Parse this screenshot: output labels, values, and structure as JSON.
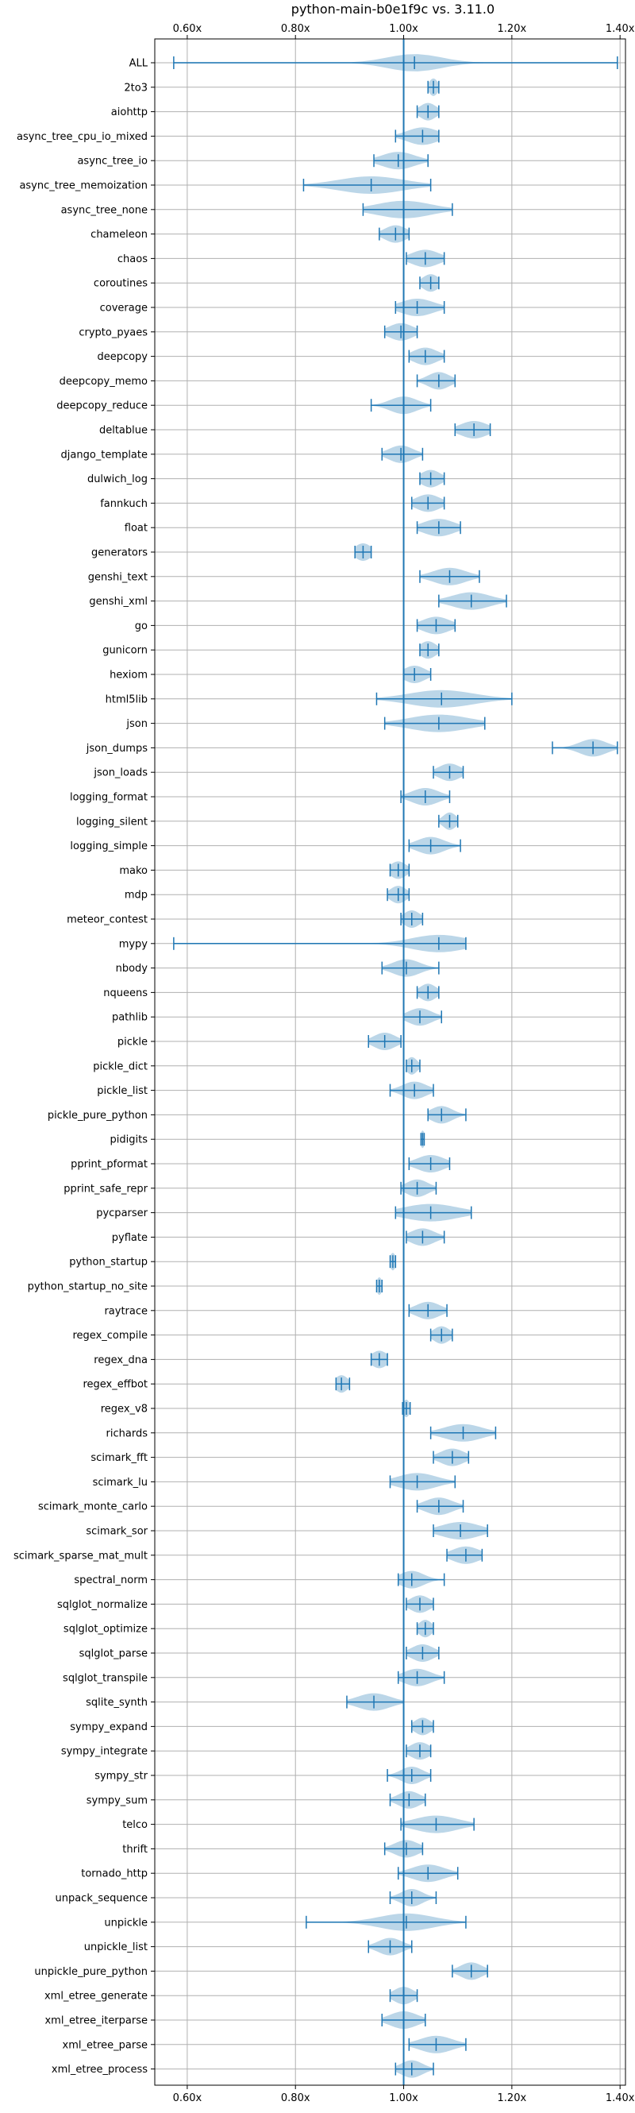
{
  "chart_data": {
    "type": "violin",
    "title": "python-main-b0e1f9c vs. 3.11.0",
    "xlim": [
      0.54,
      1.41
    ],
    "x_ticks": [
      0.6,
      0.8,
      1.0,
      1.2,
      1.4
    ],
    "x_tick_labels": [
      "0.60x",
      "0.80x",
      "1.00x",
      "1.20x",
      "1.40x"
    ],
    "reference_line": 1.0,
    "ticks_top_and_bottom": true,
    "grid": true,
    "colors": {
      "violin": "#1f77b4",
      "reference": "#1f77b4",
      "grid": "#b0b0b0"
    },
    "benchmarks": [
      {
        "name": "ALL",
        "min": 0.575,
        "max": 1.395,
        "median": 1.02,
        "spread": 0.05
      },
      {
        "name": "2to3",
        "min": 1.045,
        "max": 1.065,
        "median": 1.055,
        "spread": 0.008
      },
      {
        "name": "aiohttp",
        "min": 1.025,
        "max": 1.065,
        "median": 1.045,
        "spread": 0.015
      },
      {
        "name": "async_tree_cpu_io_mixed",
        "min": 0.985,
        "max": 1.065,
        "median": 1.035,
        "spread": 0.028
      },
      {
        "name": "async_tree_io",
        "min": 0.945,
        "max": 1.045,
        "median": 0.99,
        "spread": 0.03
      },
      {
        "name": "async_tree_memoization",
        "min": 0.815,
        "max": 1.05,
        "median": 0.94,
        "spread": 0.06
      },
      {
        "name": "async_tree_none",
        "min": 0.925,
        "max": 1.09,
        "median": 1.0,
        "spread": 0.05
      },
      {
        "name": "chameleon",
        "min": 0.955,
        "max": 1.01,
        "median": 0.985,
        "spread": 0.02
      },
      {
        "name": "chaos",
        "min": 1.005,
        "max": 1.075,
        "median": 1.04,
        "spread": 0.025
      },
      {
        "name": "coroutines",
        "min": 1.03,
        "max": 1.065,
        "median": 1.05,
        "spread": 0.015
      },
      {
        "name": "coverage",
        "min": 0.985,
        "max": 1.075,
        "median": 1.025,
        "spread": 0.03
      },
      {
        "name": "crypto_pyaes",
        "min": 0.965,
        "max": 1.025,
        "median": 0.995,
        "spread": 0.022
      },
      {
        "name": "deepcopy",
        "min": 1.01,
        "max": 1.075,
        "median": 1.04,
        "spread": 0.022
      },
      {
        "name": "deepcopy_memo",
        "min": 1.025,
        "max": 1.095,
        "median": 1.065,
        "spread": 0.02
      },
      {
        "name": "deepcopy_reduce",
        "min": 0.94,
        "max": 1.05,
        "median": 1.0,
        "spread": 0.025
      },
      {
        "name": "deltablue",
        "min": 1.095,
        "max": 1.16,
        "median": 1.13,
        "spread": 0.025
      },
      {
        "name": "django_template",
        "min": 0.96,
        "max": 1.035,
        "median": 0.995,
        "spread": 0.022
      },
      {
        "name": "dulwich_log",
        "min": 1.03,
        "max": 1.075,
        "median": 1.05,
        "spread": 0.018
      },
      {
        "name": "fannkuch",
        "min": 1.015,
        "max": 1.075,
        "median": 1.045,
        "spread": 0.022
      },
      {
        "name": "float",
        "min": 1.025,
        "max": 1.105,
        "median": 1.065,
        "spread": 0.028
      },
      {
        "name": "generators",
        "min": 0.91,
        "max": 0.94,
        "median": 0.925,
        "spread": 0.015
      },
      {
        "name": "genshi_text",
        "min": 1.03,
        "max": 1.14,
        "median": 1.085,
        "spread": 0.03
      },
      {
        "name": "genshi_xml",
        "min": 1.065,
        "max": 1.19,
        "median": 1.125,
        "spread": 0.035
      },
      {
        "name": "go",
        "min": 1.025,
        "max": 1.095,
        "median": 1.06,
        "spread": 0.025
      },
      {
        "name": "gunicorn",
        "min": 1.03,
        "max": 1.065,
        "median": 1.045,
        "spread": 0.015
      },
      {
        "name": "hexiom",
        "min": 1.0,
        "max": 1.05,
        "median": 1.02,
        "spread": 0.02
      },
      {
        "name": "html5lib",
        "min": 0.95,
        "max": 1.2,
        "median": 1.07,
        "spread": 0.06
      },
      {
        "name": "json",
        "min": 0.965,
        "max": 1.15,
        "median": 1.065,
        "spread": 0.055
      },
      {
        "name": "json_dumps",
        "min": 1.275,
        "max": 1.395,
        "median": 1.35,
        "spread": 0.025
      },
      {
        "name": "json_loads",
        "min": 1.055,
        "max": 1.11,
        "median": 1.085,
        "spread": 0.02
      },
      {
        "name": "logging_format",
        "min": 0.995,
        "max": 1.085,
        "median": 1.04,
        "spread": 0.025
      },
      {
        "name": "logging_silent",
        "min": 1.065,
        "max": 1.1,
        "median": 1.085,
        "spread": 0.012
      },
      {
        "name": "logging_simple",
        "min": 1.01,
        "max": 1.105,
        "median": 1.05,
        "spread": 0.025
      },
      {
        "name": "mako",
        "min": 0.975,
        "max": 1.01,
        "median": 0.99,
        "spread": 0.015
      },
      {
        "name": "mdp",
        "min": 0.97,
        "max": 1.01,
        "median": 0.99,
        "spread": 0.015
      },
      {
        "name": "meteor_contest",
        "min": 0.995,
        "max": 1.035,
        "median": 1.015,
        "spread": 0.015
      },
      {
        "name": "mypy",
        "min": 0.575,
        "max": 1.115,
        "median": 1.065,
        "spread": 0.05
      },
      {
        "name": "nbody",
        "min": 0.96,
        "max": 1.065,
        "median": 1.005,
        "spread": 0.025
      },
      {
        "name": "nqueens",
        "min": 1.025,
        "max": 1.065,
        "median": 1.045,
        "spread": 0.015
      },
      {
        "name": "pathlib",
        "min": 1.0,
        "max": 1.07,
        "median": 1.03,
        "spread": 0.022
      },
      {
        "name": "pickle",
        "min": 0.935,
        "max": 0.995,
        "median": 0.965,
        "spread": 0.02
      },
      {
        "name": "pickle_dict",
        "min": 1.005,
        "max": 1.03,
        "median": 1.015,
        "spread": 0.01
      },
      {
        "name": "pickle_list",
        "min": 0.975,
        "max": 1.055,
        "median": 1.02,
        "spread": 0.022
      },
      {
        "name": "pickle_pure_python",
        "min": 1.045,
        "max": 1.115,
        "median": 1.07,
        "spread": 0.02
      },
      {
        "name": "pidigits",
        "min": 1.032,
        "max": 1.038,
        "median": 1.035,
        "spread": 0.004
      },
      {
        "name": "pprint_pformat",
        "min": 1.01,
        "max": 1.085,
        "median": 1.05,
        "spread": 0.025
      },
      {
        "name": "pprint_safe_repr",
        "min": 0.995,
        "max": 1.06,
        "median": 1.025,
        "spread": 0.02
      },
      {
        "name": "pycparser",
        "min": 0.985,
        "max": 1.125,
        "median": 1.05,
        "spread": 0.05
      },
      {
        "name": "pyflate",
        "min": 1.005,
        "max": 1.075,
        "median": 1.035,
        "spread": 0.022
      },
      {
        "name": "python_startup",
        "min": 0.975,
        "max": 0.985,
        "median": 0.98,
        "spread": 0.005
      },
      {
        "name": "python_startup_no_site",
        "min": 0.95,
        "max": 0.96,
        "median": 0.955,
        "spread": 0.005
      },
      {
        "name": "raytrace",
        "min": 1.01,
        "max": 1.08,
        "median": 1.045,
        "spread": 0.022
      },
      {
        "name": "regex_compile",
        "min": 1.05,
        "max": 1.09,
        "median": 1.07,
        "spread": 0.015
      },
      {
        "name": "regex_dna",
        "min": 0.94,
        "max": 0.97,
        "median": 0.955,
        "spread": 0.015
      },
      {
        "name": "regex_effbot",
        "min": 0.875,
        "max": 0.9,
        "median": 0.885,
        "spread": 0.012
      },
      {
        "name": "regex_v8",
        "min": 0.998,
        "max": 1.012,
        "median": 1.005,
        "spread": 0.006
      },
      {
        "name": "richards",
        "min": 1.05,
        "max": 1.17,
        "median": 1.11,
        "spread": 0.035
      },
      {
        "name": "scimark_fft",
        "min": 1.055,
        "max": 1.12,
        "median": 1.09,
        "spread": 0.022
      },
      {
        "name": "scimark_lu",
        "min": 0.975,
        "max": 1.095,
        "median": 1.025,
        "spread": 0.035
      },
      {
        "name": "scimark_monte_carlo",
        "min": 1.025,
        "max": 1.11,
        "median": 1.065,
        "spread": 0.025
      },
      {
        "name": "scimark_sor",
        "min": 1.055,
        "max": 1.155,
        "median": 1.105,
        "spread": 0.035
      },
      {
        "name": "scimark_sparse_mat_mult",
        "min": 1.08,
        "max": 1.145,
        "median": 1.115,
        "spread": 0.025
      },
      {
        "name": "spectral_norm",
        "min": 0.99,
        "max": 1.075,
        "median": 1.015,
        "spread": 0.022
      },
      {
        "name": "sqlglot_normalize",
        "min": 1.005,
        "max": 1.055,
        "median": 1.03,
        "spread": 0.018
      },
      {
        "name": "sqlglot_optimize",
        "min": 1.025,
        "max": 1.055,
        "median": 1.04,
        "spread": 0.012
      },
      {
        "name": "sqlglot_parse",
        "min": 1.005,
        "max": 1.065,
        "median": 1.035,
        "spread": 0.02
      },
      {
        "name": "sqlglot_transpile",
        "min": 0.99,
        "max": 1.075,
        "median": 1.025,
        "spread": 0.025
      },
      {
        "name": "sqlite_synth",
        "min": 0.895,
        "max": 1.0,
        "median": 0.945,
        "spread": 0.03
      },
      {
        "name": "sympy_expand",
        "min": 1.015,
        "max": 1.055,
        "median": 1.035,
        "spread": 0.015
      },
      {
        "name": "sympy_integrate",
        "min": 1.005,
        "max": 1.05,
        "median": 1.03,
        "spread": 0.018
      },
      {
        "name": "sympy_str",
        "min": 0.97,
        "max": 1.05,
        "median": 1.015,
        "spread": 0.02
      },
      {
        "name": "sympy_sum",
        "min": 0.975,
        "max": 1.04,
        "median": 1.01,
        "spread": 0.02
      },
      {
        "name": "telco",
        "min": 0.995,
        "max": 1.13,
        "median": 1.06,
        "spread": 0.04
      },
      {
        "name": "thrift",
        "min": 0.965,
        "max": 1.035,
        "median": 1.005,
        "spread": 0.022
      },
      {
        "name": "tornado_http",
        "min": 0.99,
        "max": 1.1,
        "median": 1.045,
        "spread": 0.03
      },
      {
        "name": "unpack_sequence",
        "min": 0.975,
        "max": 1.06,
        "median": 1.015,
        "spread": 0.02
      },
      {
        "name": "unpickle",
        "min": 0.82,
        "max": 1.115,
        "median": 1.005,
        "spread": 0.05
      },
      {
        "name": "unpickle_list",
        "min": 0.935,
        "max": 1.015,
        "median": 0.975,
        "spread": 0.022
      },
      {
        "name": "unpickle_pure_python",
        "min": 1.09,
        "max": 1.155,
        "median": 1.125,
        "spread": 0.02
      },
      {
        "name": "xml_etree_generate",
        "min": 0.975,
        "max": 1.025,
        "median": 1.0,
        "spread": 0.018
      },
      {
        "name": "xml_etree_iterparse",
        "min": 0.96,
        "max": 1.04,
        "median": 1.0,
        "spread": 0.025
      },
      {
        "name": "xml_etree_parse",
        "min": 1.01,
        "max": 1.115,
        "median": 1.06,
        "spread": 0.03
      },
      {
        "name": "xml_etree_process",
        "min": 0.985,
        "max": 1.055,
        "median": 1.015,
        "spread": 0.02
      }
    ]
  }
}
